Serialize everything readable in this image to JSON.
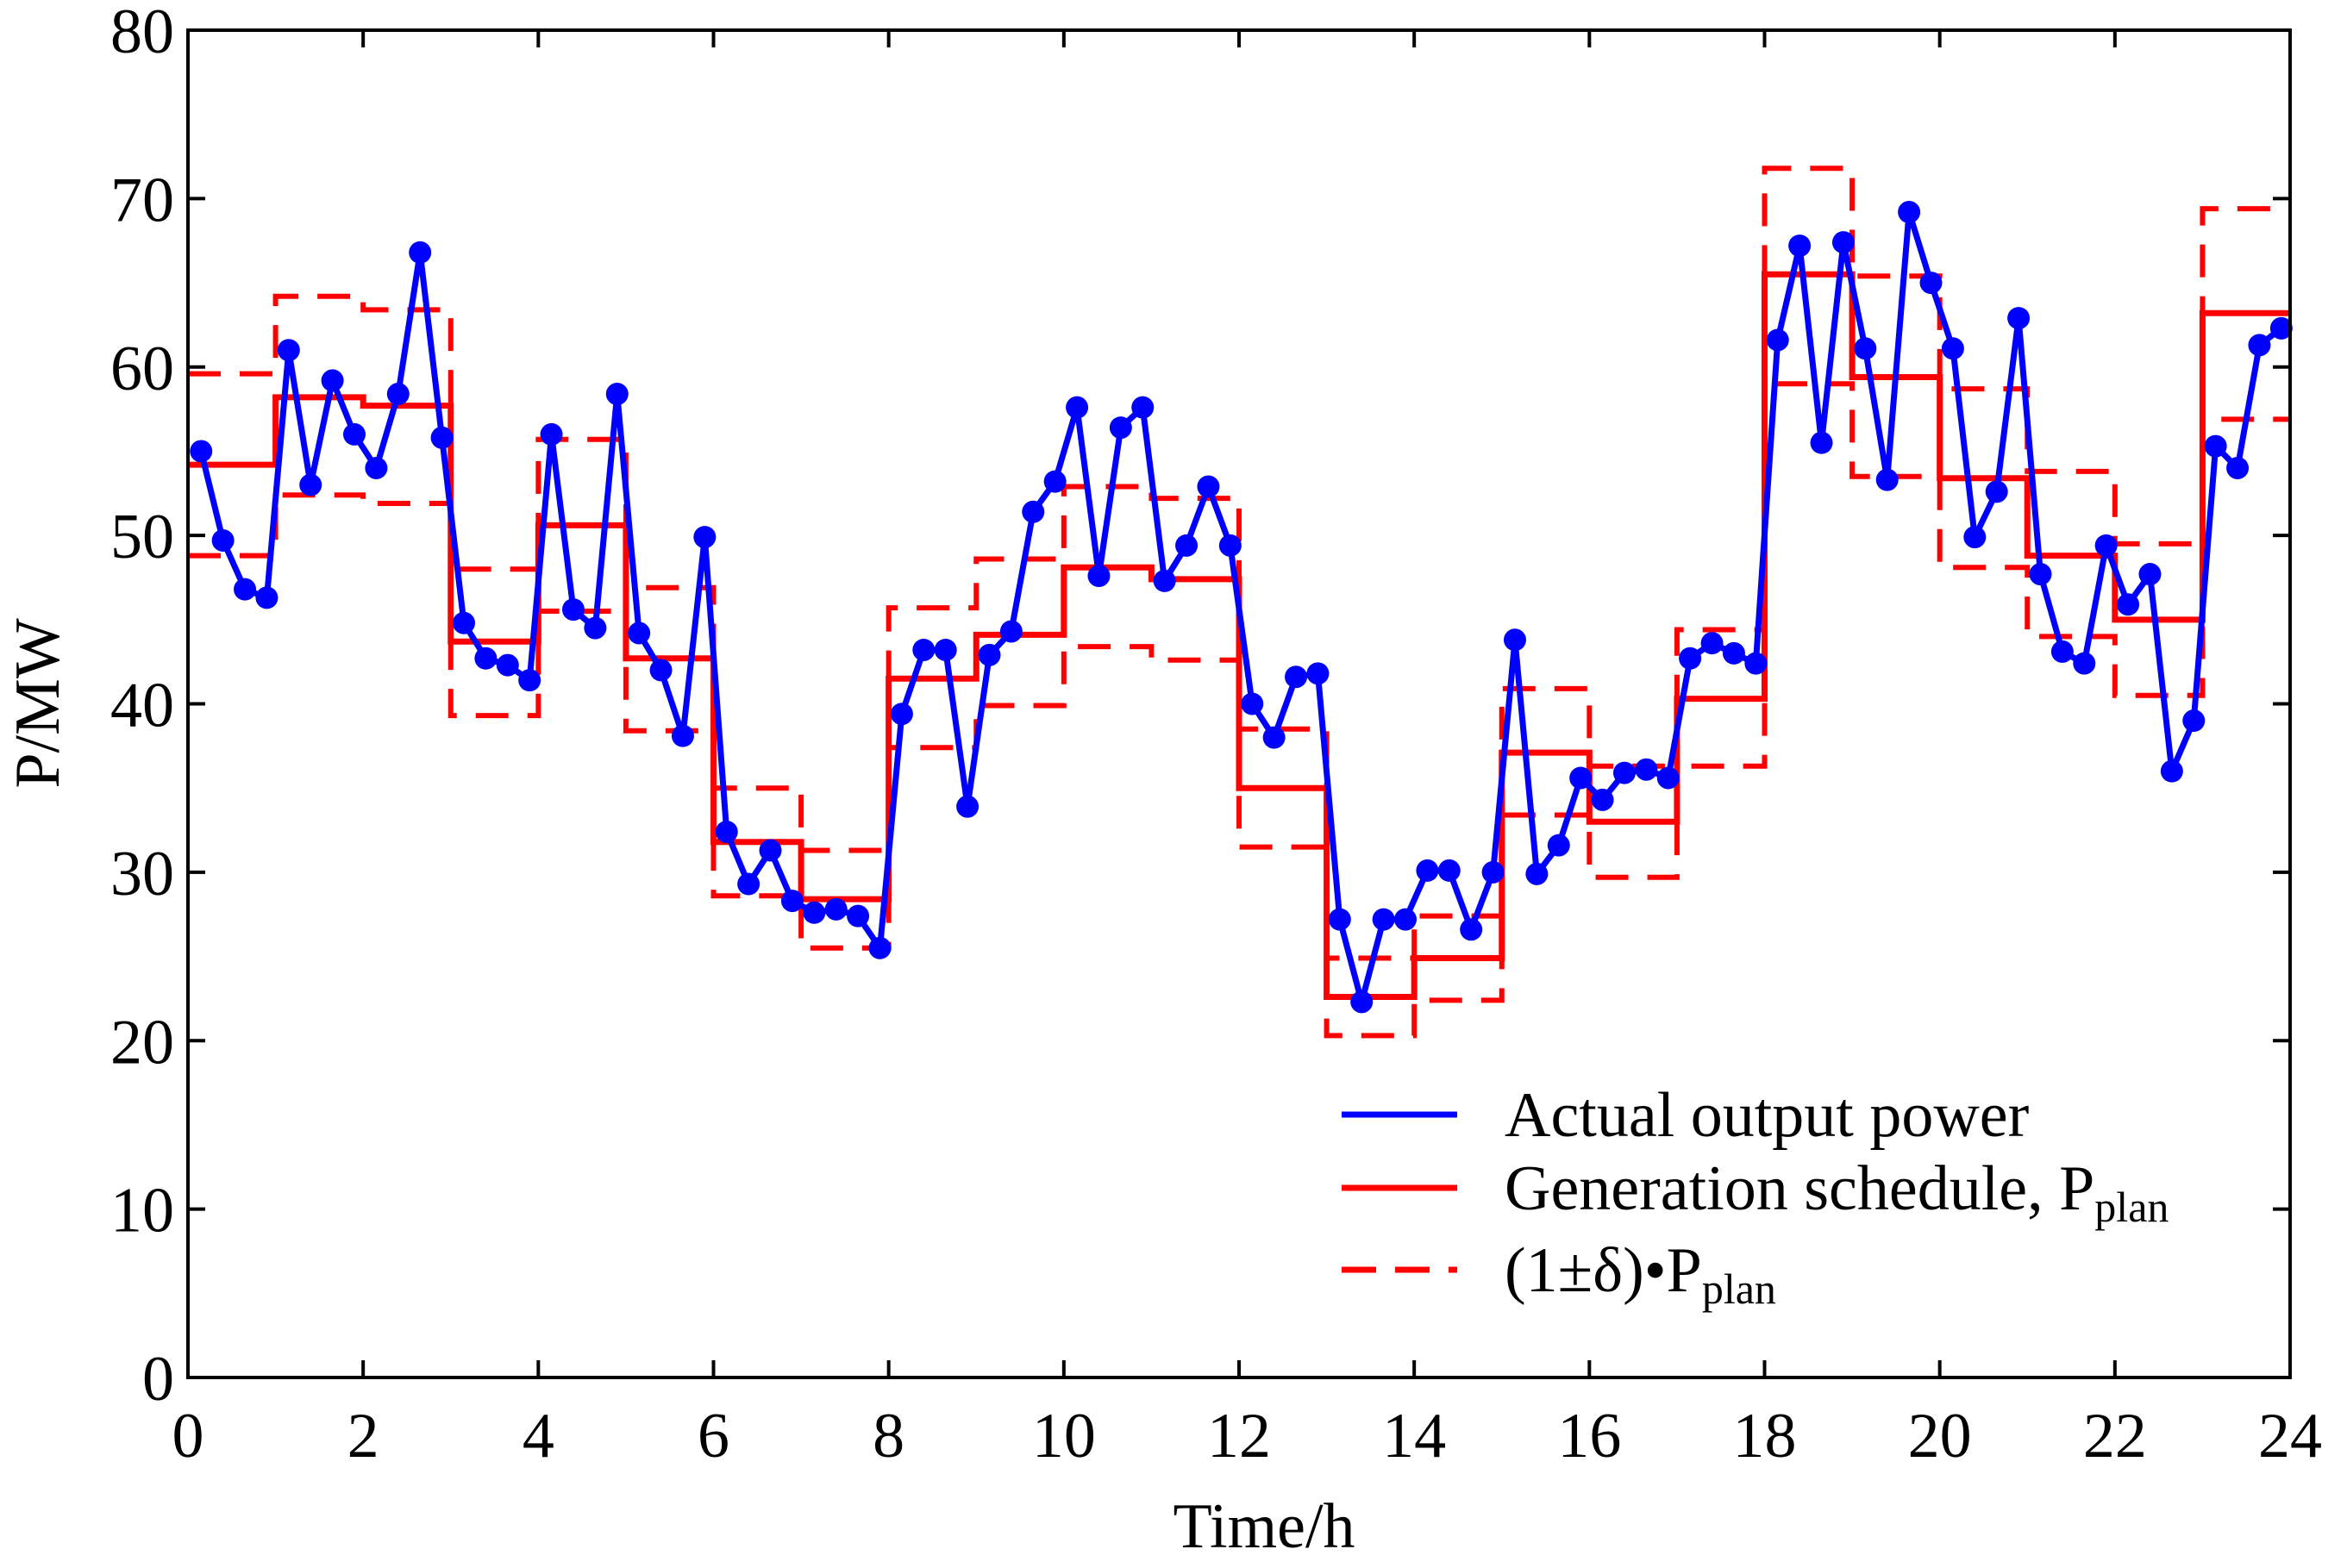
{
  "chart_data": {
    "type": "line",
    "xlabel": "Time/h",
    "ylabel": "P/MW",
    "xlim": [
      0,
      24
    ],
    "ylim": [
      0,
      80
    ],
    "xticks": [
      "0",
      "2",
      "4",
      "6",
      "8",
      "10",
      "12",
      "14",
      "16",
      "18",
      "20",
      "22",
      "24"
    ],
    "yticks": [
      "0",
      "10",
      "20",
      "30",
      "40",
      "50",
      "60",
      "70",
      "80"
    ],
    "grid": false,
    "legend_position": "bottom-right",
    "colors": {
      "actual": "#0000ff",
      "plan": "#ff0000",
      "band": "#ff0000"
    },
    "series": [
      {
        "name": "Actual output power",
        "style": "solid-with-markers",
        "x": [
          0.15,
          0.4,
          0.65,
          0.9,
          1.15,
          1.4,
          1.65,
          1.9,
          2.15,
          2.4,
          2.65,
          2.9,
          3.15,
          3.4,
          3.65,
          3.9,
          4.15,
          4.4,
          4.65,
          4.9,
          5.15,
          5.4,
          5.65,
          5.9,
          6.15,
          6.4,
          6.65,
          6.9,
          7.15,
          7.4,
          7.65,
          7.9,
          8.15,
          8.4,
          8.65,
          8.9,
          9.15,
          9.4,
          9.65,
          9.9,
          10.15,
          10.4,
          10.65,
          10.9,
          11.15,
          11.4,
          11.65,
          11.9,
          12.15,
          12.4,
          12.65,
          12.9,
          13.15,
          13.4,
          13.65,
          13.9,
          14.15,
          14.4,
          14.65,
          14.9,
          15.15,
          15.4,
          15.65,
          15.9,
          16.15,
          16.4,
          16.65,
          16.9,
          17.15,
          17.4,
          17.65,
          17.9,
          18.15,
          18.4,
          18.65,
          18.9,
          19.15,
          19.4,
          19.65,
          19.9,
          20.15,
          20.4,
          20.65,
          20.9,
          21.15,
          21.4,
          21.65,
          21.9,
          22.15,
          22.4,
          22.65,
          22.9,
          23.15,
          23.4,
          23.65,
          23.9
        ],
        "values": [
          55.0,
          49.7,
          46.8,
          46.3,
          61.0,
          53.0,
          59.2,
          56.0,
          54.0,
          58.4,
          66.8,
          55.8,
          44.8,
          42.7,
          42.3,
          41.4,
          56.0,
          45.6,
          44.5,
          58.4,
          44.2,
          42.0,
          38.1,
          49.9,
          32.4,
          29.3,
          31.3,
          28.3,
          27.6,
          27.8,
          27.4,
          25.5,
          39.4,
          43.2,
          43.2,
          33.9,
          42.9,
          44.3,
          51.4,
          53.2,
          57.6,
          47.6,
          56.4,
          57.6,
          47.3,
          49.4,
          52.9,
          49.4,
          40.0,
          38.0,
          41.6,
          41.8,
          27.2,
          22.3,
          27.2,
          27.2,
          30.1,
          30.1,
          26.6,
          30.0,
          43.8,
          29.9,
          31.6,
          35.6,
          34.3,
          35.9,
          36.1,
          35.6,
          42.7,
          43.6,
          43.0,
          42.4,
          61.6,
          67.2,
          55.5,
          67.4,
          61.1,
          53.3,
          69.2,
          65.0,
          61.1,
          49.9,
          52.6,
          62.9,
          47.7,
          43.1,
          42.4,
          49.4,
          45.9,
          47.7,
          36.0,
          39.0,
          55.3,
          54.0,
          61.3,
          62.3
        ]
      },
      {
        "name": "Generation schedule, P",
        "name_subscript": "plan",
        "style": "solid-step",
        "hours": [
          0,
          1,
          2,
          3,
          4,
          5,
          6,
          7,
          8,
          9,
          10,
          11,
          12,
          13,
          14,
          15,
          16,
          17,
          18,
          19,
          20,
          21,
          22,
          23
        ],
        "values": [
          54.2,
          58.2,
          57.7,
          43.7,
          50.6,
          42.7,
          31.8,
          28.4,
          41.5,
          44.1,
          48.1,
          47.4,
          35.0,
          22.6,
          24.9,
          37.1,
          33.0,
          40.3,
          65.5,
          59.4,
          53.4,
          48.8,
          45.0,
          63.2
        ]
      },
      {
        "name": "(1±δ)•P",
        "name_subscript": "plan",
        "style": "dashed-step",
        "upper": [
          59.6,
          64.2,
          63.4,
          48.0,
          55.7,
          46.9,
          35.0,
          31.3,
          45.7,
          48.6,
          52.9,
          52.2,
          38.5,
          24.9,
          27.4,
          40.9,
          36.3,
          44.4,
          71.8,
          65.4,
          58.7,
          53.8,
          49.5,
          69.4
        ],
        "lower": [
          48.8,
          52.4,
          51.9,
          39.3,
          45.5,
          38.4,
          28.6,
          25.5,
          37.4,
          39.9,
          43.4,
          42.6,
          31.5,
          20.3,
          22.4,
          33.4,
          29.7,
          36.3,
          59.0,
          53.5,
          48.1,
          44.0,
          40.5,
          56.9
        ]
      }
    ]
  }
}
